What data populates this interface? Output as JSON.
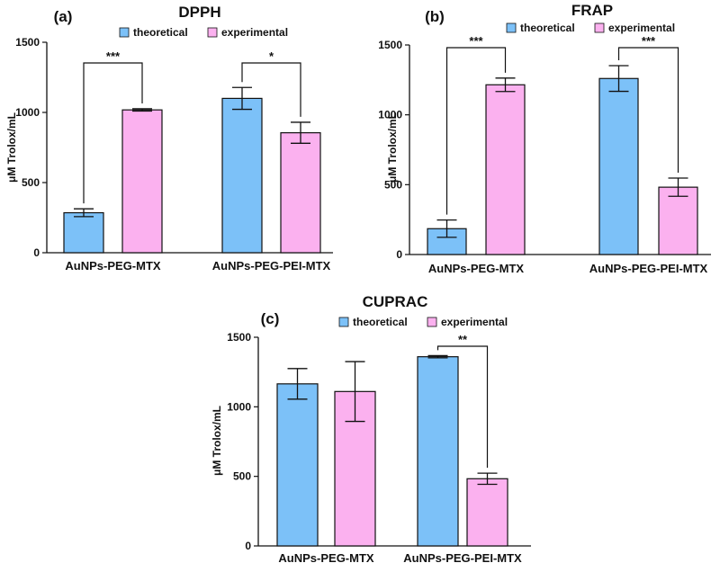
{
  "colors": {
    "theoretical": "#7cc1f8",
    "experimental": "#fbb1ef",
    "axis": "#111111"
  },
  "chart_data": [
    {
      "type": "bar",
      "panel_label": "(a)",
      "title": "DPPH",
      "ylabel": "μM Trolox/mL",
      "xlabel": "",
      "ylim": [
        0,
        1500
      ],
      "yticks": [
        0,
        500,
        1000,
        1500
      ],
      "categories": [
        "AuNPs-PEG-MTX",
        "AuNPs-PEG-PEI-MTX"
      ],
      "series": [
        {
          "name": "theoretical",
          "values": [
            285,
            1100
          ],
          "errors": [
            28,
            78
          ]
        },
        {
          "name": "experimental",
          "values": [
            1018,
            855
          ],
          "errors": [
            8,
            75
          ]
        }
      ],
      "significance": [
        {
          "category_index": 0,
          "label": "***"
        },
        {
          "category_index": 1,
          "label": "*"
        }
      ]
    },
    {
      "type": "bar",
      "panel_label": "(b)",
      "title": "FRAP",
      "ylabel": "μM Trolox/mL",
      "xlabel": "",
      "ylim": [
        0,
        1500
      ],
      "yticks": [
        0,
        500,
        1000,
        1500
      ],
      "categories": [
        "AuNPs-PEG-MTX",
        "AuNPs-PEG-PEI-MTX"
      ],
      "series": [
        {
          "name": "theoretical",
          "values": [
            185,
            1260
          ],
          "errors": [
            62,
            92
          ]
        },
        {
          "name": "experimental",
          "values": [
            1215,
            482
          ],
          "errors": [
            48,
            65
          ]
        }
      ],
      "significance": [
        {
          "category_index": 0,
          "label": "***"
        },
        {
          "category_index": 1,
          "label": "***"
        }
      ]
    },
    {
      "type": "bar",
      "panel_label": "(c)",
      "title": "CUPRAC",
      "ylabel": "μM Trolox/mL",
      "xlabel": "",
      "ylim": [
        0,
        1500
      ],
      "yticks": [
        0,
        500,
        1000,
        1500
      ],
      "categories": [
        "AuNPs-PEG-MTX",
        "AuNPs-PEG-PEI-MTX"
      ],
      "series": [
        {
          "name": "theoretical",
          "values": [
            1165,
            1360
          ],
          "errors": [
            110,
            8
          ]
        },
        {
          "name": "experimental",
          "values": [
            1110,
            483
          ],
          "errors": [
            215,
            40
          ]
        }
      ],
      "significance": [
        {
          "category_index": 1,
          "label": "**"
        }
      ]
    }
  ]
}
